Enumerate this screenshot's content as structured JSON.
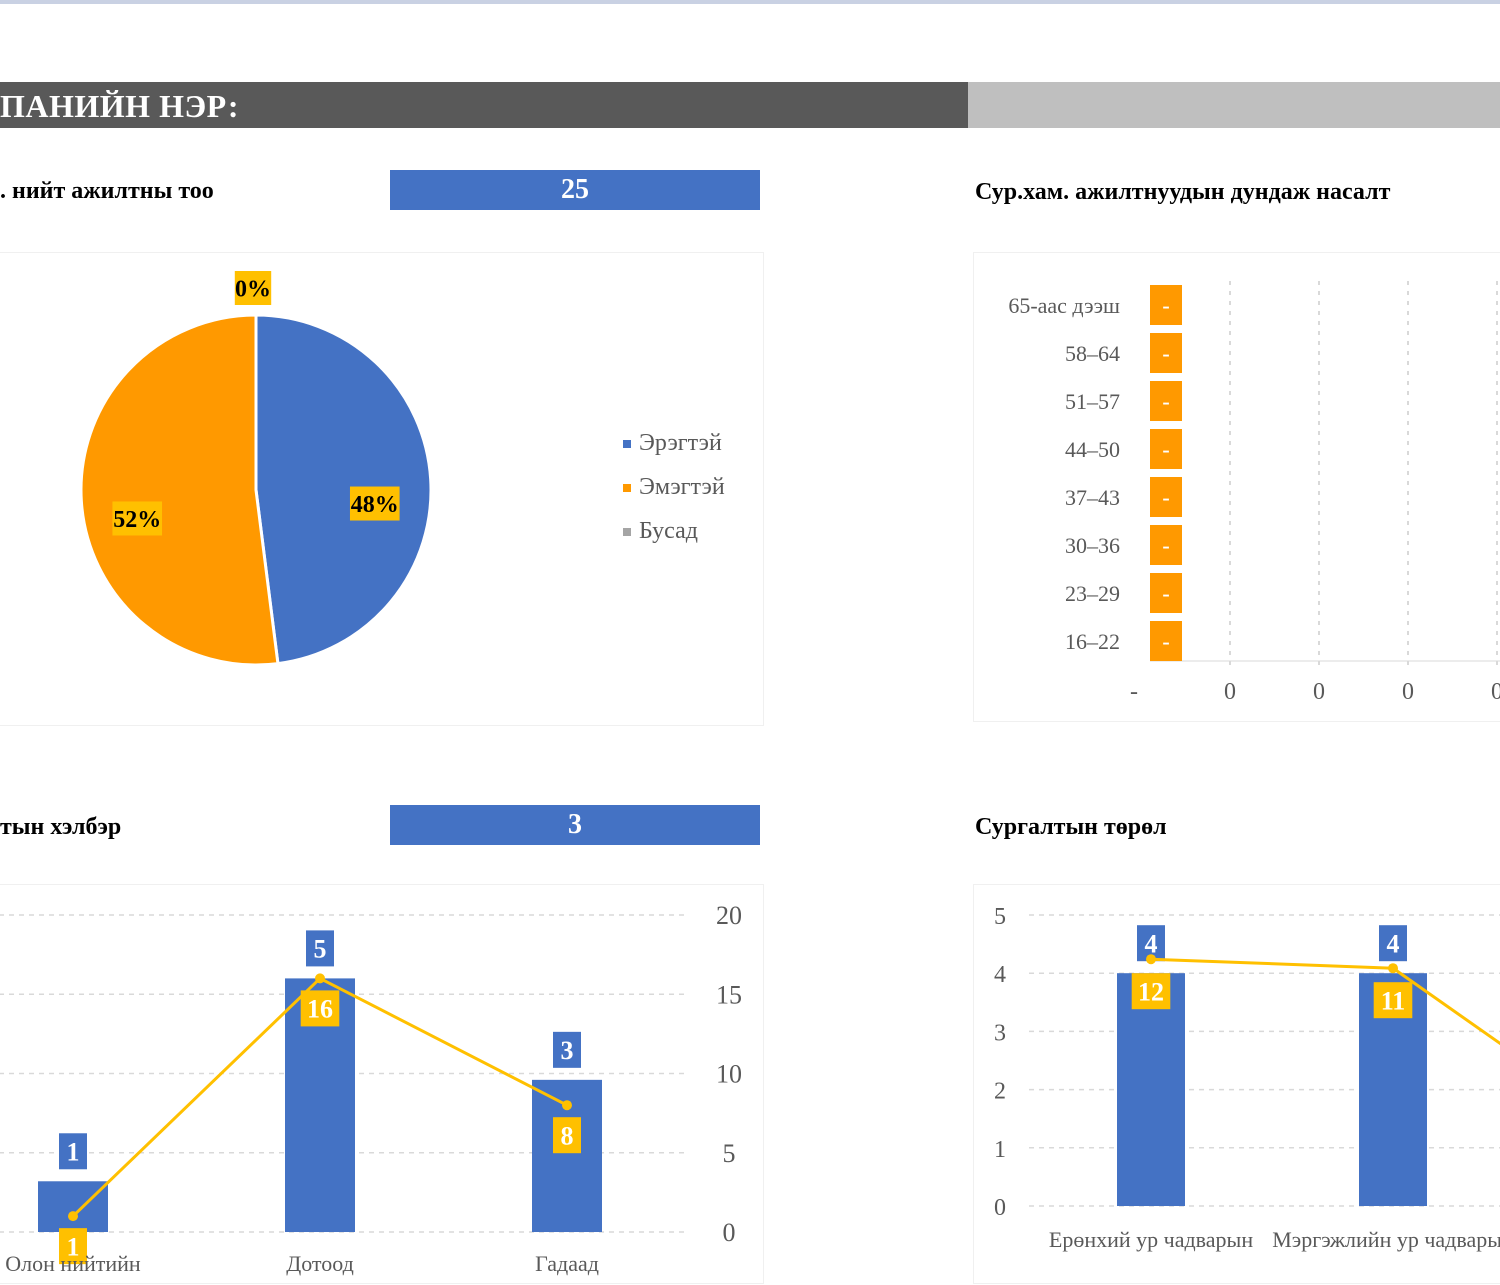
{
  "header": {
    "company_label": "ПАНИЙН НЭР:"
  },
  "colors": {
    "blue": "#4472c4",
    "orange": "#ff9900",
    "gold": "#ffc000",
    "dark": "#595959",
    "gray": "#bfbfbf"
  },
  "sections": {
    "total_employees": {
      "label": ". нийт ажилтны тоо",
      "value": "25"
    },
    "age_distribution": {
      "label": "Сур.хам. ажилтнуудын дундаж насалт"
    },
    "training_form": {
      "label": "тын хэлбэр",
      "value": "3"
    },
    "training_type": {
      "label": "Сургалтын төрөл"
    }
  },
  "chart_data": [
    {
      "id": "gender_pie",
      "type": "pie",
      "slices": [
        {
          "name": "Эрэгтэй",
          "value": 48,
          "label": "48%",
          "color": "#4472c4"
        },
        {
          "name": "Эмэгтэй",
          "value": 52,
          "label": "52%",
          "color": "#ff9900"
        },
        {
          "name": "Бусад",
          "value": 0,
          "label": "0%",
          "color": "#a5a5a5"
        }
      ],
      "legend": "right"
    },
    {
      "id": "age_bar",
      "type": "bar",
      "orientation": "horizontal",
      "categories": [
        "65-аас дээш",
        "58–64",
        "51–57",
        "44–50",
        "37–43",
        "30–36",
        "23–29",
        "16–22"
      ],
      "values": [
        0,
        0,
        0,
        0,
        0,
        0,
        0,
        0
      ],
      "data_labels": [
        "-",
        "-",
        "-",
        "-",
        "-",
        "-",
        "-",
        "-"
      ],
      "x_tick_labels": [
        "-",
        "0",
        "0",
        "0",
        "0"
      ],
      "grid": true
    },
    {
      "id": "form_combo",
      "type": "bar",
      "categories": [
        "Олон нийтийн",
        "Дотоод",
        "Гадаад"
      ],
      "series": [
        {
          "kind": "bar",
          "values": [
            1,
            5,
            3
          ],
          "labels": [
            "1",
            "5",
            "3"
          ]
        },
        {
          "kind": "line",
          "values": [
            1,
            16,
            8
          ],
          "labels": [
            "1",
            "16",
            "8"
          ]
        }
      ],
      "y_right_ticks": [
        "20",
        "15",
        "10",
        "5",
        "0"
      ],
      "bar_ylim": [
        0,
        6.25
      ],
      "line_ylim": [
        0,
        20
      ],
      "grid": true
    },
    {
      "id": "type_combo",
      "type": "bar",
      "categories": [
        "Ерөнхий ур чадварын",
        "Мэргэжлийн ур чадварын"
      ],
      "series": [
        {
          "kind": "bar",
          "values": [
            4,
            4
          ],
          "labels": [
            "4",
            "4"
          ]
        },
        {
          "kind": "line",
          "values": [
            12,
            11
          ],
          "labels": [
            "12",
            "11"
          ]
        }
      ],
      "y_left_ticks": [
        "5",
        "4",
        "3",
        "2",
        "1",
        "0"
      ],
      "bar_ylim": [
        0,
        5
      ],
      "grid": true
    }
  ]
}
